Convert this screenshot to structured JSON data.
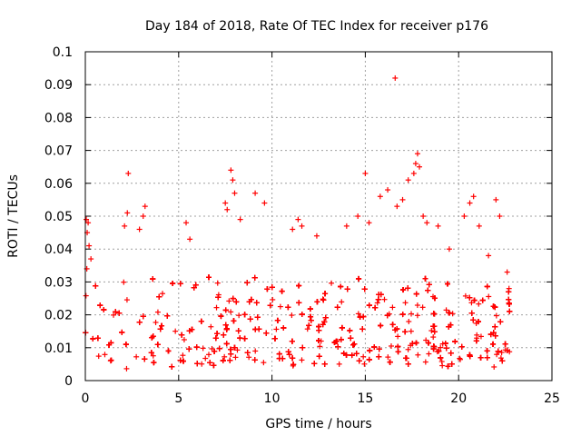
{
  "chart_data": {
    "type": "scatter",
    "title": "Day 184 of 2018, Rate Of TEC Index for receiver p176",
    "xlabel": "GPS time / hours",
    "ylabel": "ROTI / TECUs",
    "xlim": [
      0,
      25
    ],
    "ylim": [
      0,
      0.1
    ],
    "x_ticks": [
      0,
      5,
      10,
      15,
      20,
      25
    ],
    "x_tick_labels": [
      "0",
      "5",
      "10",
      "15",
      "20",
      "25"
    ],
    "y_ticks": [
      0,
      0.01,
      0.02,
      0.03,
      0.04,
      0.05,
      0.06,
      0.07,
      0.08,
      0.09,
      0.1
    ],
    "y_tick_labels": [
      "0",
      "0.01",
      "0.02",
      "0.03",
      "0.04",
      "0.05",
      "0.06",
      "0.07",
      "0.08",
      "0.09",
      "0.1"
    ],
    "grid": true,
    "marker": "+",
    "color": "#ff0000",
    "data_time_range_hours": [
      0,
      22.8
    ],
    "typical_band": [
      0.005,
      0.03
    ],
    "series": [
      {
        "name": "ROTI",
        "points": [
          [
            0.05,
            0.049
          ],
          [
            0.15,
            0.048
          ],
          [
            0.1,
            0.045
          ],
          [
            0.2,
            0.041
          ],
          [
            0.3,
            0.037
          ],
          [
            0.08,
            0.034
          ],
          [
            2.3,
            0.063
          ],
          [
            2.1,
            0.047
          ],
          [
            2.25,
            0.051
          ],
          [
            3.2,
            0.053
          ],
          [
            3.1,
            0.05
          ],
          [
            2.9,
            0.046
          ],
          [
            5.4,
            0.048
          ],
          [
            5.6,
            0.043
          ],
          [
            7.5,
            0.054
          ],
          [
            7.6,
            0.052
          ],
          [
            7.8,
            0.064
          ],
          [
            7.9,
            0.061
          ],
          [
            8.0,
            0.057
          ],
          [
            8.3,
            0.049
          ],
          [
            9.1,
            0.057
          ],
          [
            9.6,
            0.054
          ],
          [
            11.1,
            0.046
          ],
          [
            11.4,
            0.049
          ],
          [
            11.6,
            0.047
          ],
          [
            12.4,
            0.044
          ],
          [
            14.0,
            0.047
          ],
          [
            14.6,
            0.05
          ],
          [
            15.0,
            0.063
          ],
          [
            15.2,
            0.048
          ],
          [
            15.8,
            0.056
          ],
          [
            16.2,
            0.058
          ],
          [
            16.6,
            0.092
          ],
          [
            16.7,
            0.053
          ],
          [
            17.0,
            0.055
          ],
          [
            17.3,
            0.061
          ],
          [
            17.6,
            0.063
          ],
          [
            17.7,
            0.066
          ],
          [
            17.8,
            0.069
          ],
          [
            17.9,
            0.065
          ],
          [
            18.1,
            0.05
          ],
          [
            18.3,
            0.048
          ],
          [
            18.9,
            0.047
          ],
          [
            19.5,
            0.04
          ],
          [
            20.3,
            0.05
          ],
          [
            20.6,
            0.054
          ],
          [
            20.8,
            0.056
          ],
          [
            21.1,
            0.047
          ],
          [
            21.6,
            0.038
          ],
          [
            22.0,
            0.055
          ],
          [
            22.2,
            0.05
          ],
          [
            22.6,
            0.033
          ],
          [
            22.7,
            0.028
          ]
        ]
      }
    ]
  }
}
